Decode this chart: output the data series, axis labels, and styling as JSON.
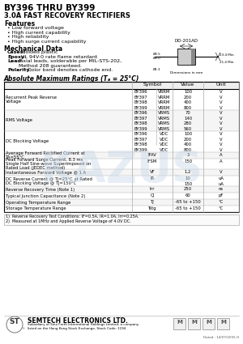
{
  "title": "BY396 THRU BY399",
  "subtitle": "3.0A FAST RECOVERY RECTIFIERS",
  "features_title": "Features",
  "features": [
    "Low forward voltage",
    "High current capability",
    "High reliability",
    "High surge current capability"
  ],
  "mech_title": "Mechanical Data",
  "mech_lines": [
    "Cases: Molded plastic",
    "Epoxy: UL 94V-0 rate flame retardant",
    "Lead: Axial leads, solderable per MIL-STS-202,",
    "       Method 208 guaranteed.",
    "Polarity: Color band denotes cathode end."
  ],
  "table_title": "Absolute Maximum Ratings (Tₐ = 25°C)",
  "package": "DO-201AD",
  "table_headers": [
    "",
    "Symbol",
    "Value",
    "Unit"
  ],
  "table_rows": [
    [
      "Recurrent Peak Reverse Voltage",
      "BY396|BY397|BY398|BY399",
      "VRRM|VRRM|VRRM|VRRM",
      "100|200|400|800",
      "V|V|V|V"
    ],
    [
      "RMS Voltage",
      "BY396|BY397|BY398|BY399",
      "VRMS|VRMS|VRMS|VRMS",
      "70|140|280|560",
      "V|V|V|V"
    ],
    [
      "DC Blocking Voltage",
      "BY396|BY397|BY398|BY399",
      "VDC|VDC|VDC|VDC",
      "100|200|400|800",
      "V|V|V|V"
    ],
    [
      "Average Forward Rectified Current at TA=55°C",
      "",
      "IFAV",
      "3",
      "A"
    ],
    [
      "Peak Forward Surge Current, 8.3 ms Single Half Sine-wave Superimposed on Rated Load (JEDEC method)",
      "",
      "IFSM",
      "150",
      "A"
    ],
    [
      "Instantaneous Forward Voltage @ 1 A",
      "",
      "VF",
      "1.2",
      "V"
    ],
    [
      "DC Reverse Current @ TJ=25°C at Rated DC Blocking Voltage @ TJ=150°C",
      "",
      "IR",
      "10|150",
      "uA|uA"
    ],
    [
      "Reverse Recovery Time (Note 1)",
      "",
      "trr",
      "250",
      "ns"
    ],
    [
      "Typical Junction Capacitance (Note 2)",
      "",
      "CJ",
      "60",
      "pF"
    ],
    [
      "Operating Temperature Range",
      "",
      "TJ",
      "-65 to +150",
      "°C"
    ],
    [
      "Storage Temperature Range",
      "",
      "Tstg",
      "-65 to +150",
      "°C"
    ]
  ],
  "notes": [
    "1)  Reverse Recovery Test Conditions: IF=0.5A, IR=1.0A, Irr=0.25A.",
    "2)  Measured at 1MHz and Applied Reverse Voltage of 4.0V DC."
  ],
  "footer_company": "SEMTECH ELECTRONICS LTD.",
  "footer_sub1": "Subsidiary of Sino Forth International Holdings Limited, a company",
  "footer_sub2": "listed on the Hong Kong Stock Exchange, Stock Code: 1194",
  "date_code": "Dated : 14/07/2005 H",
  "bg_color": "#ffffff",
  "watermark_color": "#c8d8e8"
}
